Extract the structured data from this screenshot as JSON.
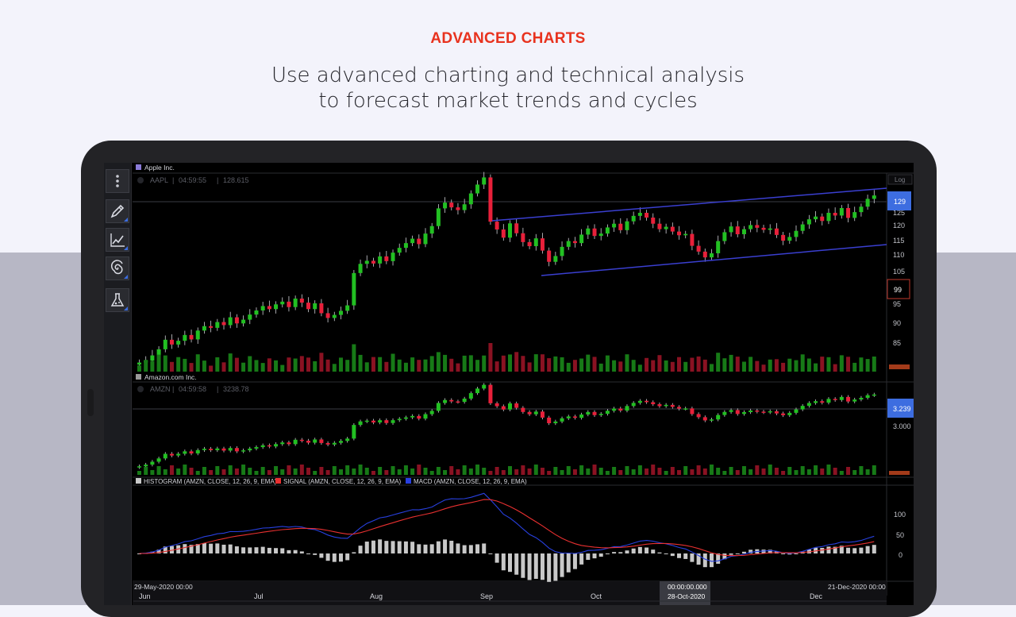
{
  "header": {
    "eyebrow": "ADVANCED CHARTS",
    "line1": "Use advanced charting and technical analysis",
    "line2": "to forecast market trends and cycles"
  },
  "toolbar": {
    "items": [
      {
        "icon": "more-vertical-icon"
      },
      {
        "icon": "pencil-icon"
      },
      {
        "icon": "line-chart-icon"
      },
      {
        "icon": "spiral-icon"
      },
      {
        "icon": "flask-icon"
      }
    ]
  },
  "colors": {
    "up": "#22c022",
    "down": "#e8203a",
    "trend": "#3a3fd0",
    "macd": "#2840e0",
    "signal": "#e83030",
    "histogram": "#c8c8c8",
    "accent_price": "#3d6de0"
  },
  "panels": {
    "aapl": {
      "name": "Apple Inc.",
      "symbol": "AAPL",
      "time": "04:59:55",
      "last": "128.615",
      "log_label": "Log",
      "price_badge": "129",
      "cursor_badge": "99",
      "ticks": [
        "125",
        "120",
        "115",
        "110",
        "105",
        "95",
        "90",
        "85"
      ]
    },
    "amzn": {
      "name": "Amazon.com Inc.",
      "symbol": "AMZN",
      "time": "04:59:58",
      "last": "3238.78",
      "price_badge": "3.239",
      "ticks": [
        "3.000"
      ]
    },
    "macd": {
      "legend": [
        {
          "label": "HISTOGRAM (AMZN, CLOSE, 12, 26, 9, EMA)",
          "color": "#c8c8c8"
        },
        {
          "label": "SIGNAL (AMZN, CLOSE, 12, 26, 9, EMA)",
          "color": "#e83030"
        },
        {
          "label": "MACD (AMZN, CLOSE, 12, 26, 9, EMA)",
          "color": "#2840e0"
        }
      ],
      "ticks": [
        "100",
        "50",
        "0"
      ]
    }
  },
  "time_axis": {
    "start": "29-May-2020 00:00",
    "end": "21-Dec-2020 00:00",
    "months": [
      "Jun",
      "Jul",
      "Aug",
      "Sep",
      "Oct",
      "Dec"
    ],
    "cursor_time": "00:00:00.000",
    "cursor_date": "28-Oct-2020"
  },
  "chart_data": {
    "type": "candlestick",
    "aapl_close": [
      79.5,
      80.1,
      81.6,
      83.4,
      86.2,
      84.8,
      85.9,
      87.6,
      86.3,
      88.9,
      90.2,
      89.7,
      91.4,
      90.5,
      92.8,
      91.0,
      92.1,
      93.6,
      94.8,
      96.1,
      95.2,
      96.6,
      97.4,
      95.8,
      98.3,
      97.1,
      95.2,
      96.9,
      94.0,
      92.6,
      93.5,
      94.7,
      96.3,
      105.8,
      108.5,
      109.4,
      108.6,
      110.7,
      109.3,
      111.8,
      113.2,
      114.6,
      115.9,
      114.3,
      117.4,
      119.6,
      124.8,
      126.5,
      125.1,
      124.3,
      126.0,
      129.2,
      131.8,
      133.9,
      120.9,
      118.6,
      116.2,
      120.4,
      117.5,
      114.9,
      113.7,
      116.0,
      112.4,
      109.1,
      110.8,
      113.5,
      115.2,
      114.6,
      117.1,
      118.9,
      116.7,
      117.4,
      119.2,
      120.3,
      118.4,
      121.0,
      122.6,
      123.5,
      122.1,
      120.3,
      118.7,
      119.4,
      118.0,
      116.9,
      117.3,
      113.8,
      112.1,
      110.4,
      111.6,
      115.2,
      117.8,
      119.5,
      117.2,
      118.7,
      119.9,
      119.1,
      118.5,
      118.9,
      117.0,
      115.3,
      116.4,
      118.2,
      120.1,
      121.6,
      122.4,
      121.1,
      123.5,
      122.7,
      124.9,
      122.0,
      123.7,
      125.3,
      127.6,
      128.6
    ]
  }
}
